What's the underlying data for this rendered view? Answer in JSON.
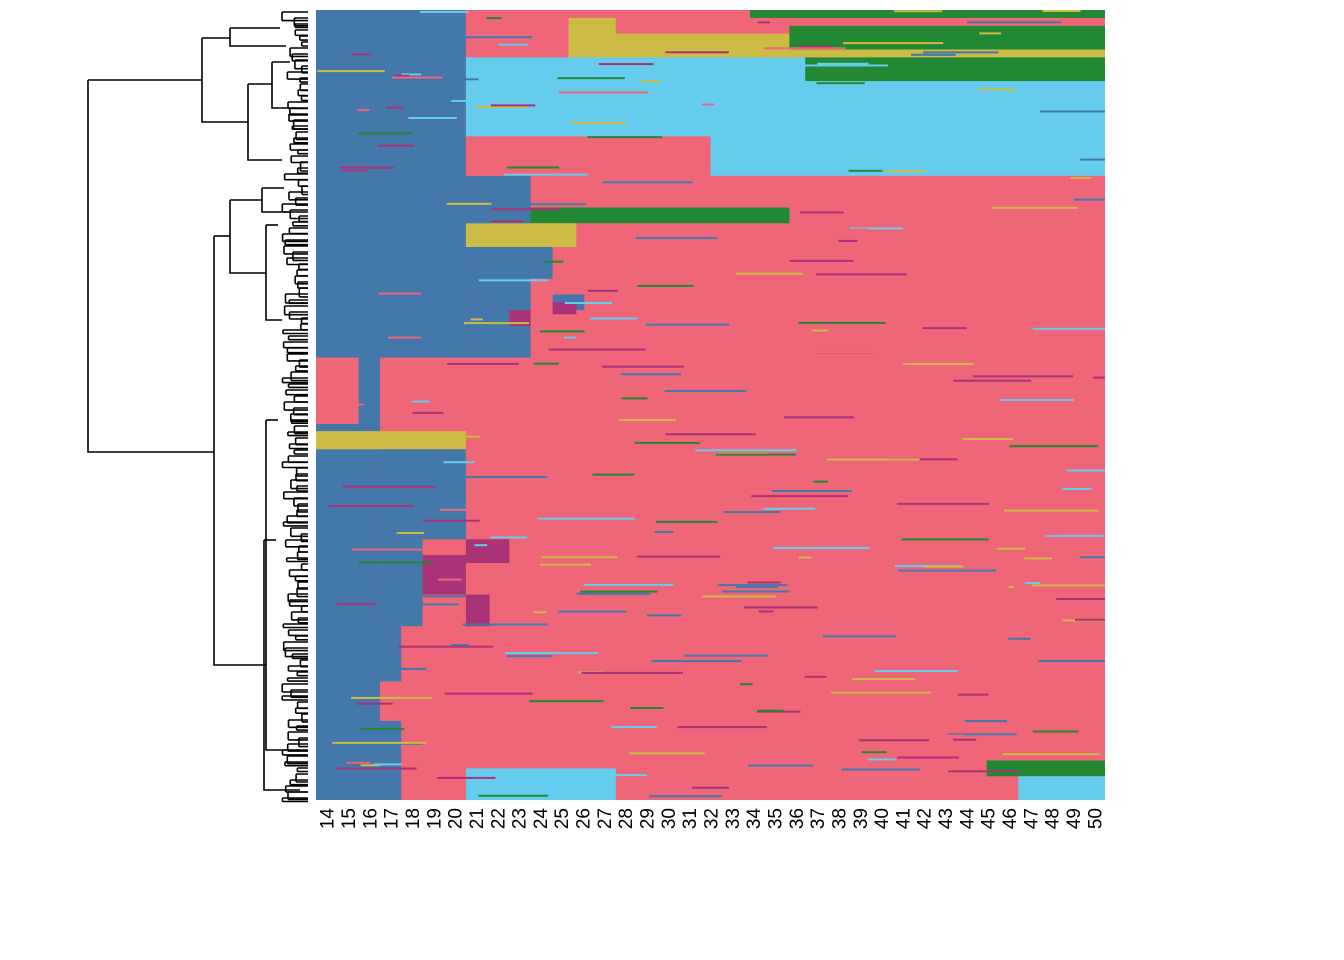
{
  "chart_data": {
    "type": "heatmap",
    "title": "",
    "xlabel": "",
    "ylabel": "",
    "x_tick_labels": [
      "14",
      "15",
      "16",
      "17",
      "18",
      "19",
      "20",
      "21",
      "22",
      "23",
      "24",
      "25",
      "26",
      "27",
      "28",
      "29",
      "30",
      "31",
      "32",
      "33",
      "34",
      "35",
      "36",
      "37",
      "38",
      "39",
      "40",
      "41",
      "42",
      "43",
      "44",
      "45",
      "46",
      "47",
      "48",
      "49",
      "50"
    ],
    "row_dendrogram": true,
    "legend": "none",
    "state_colors": {
      "steelblue": "#4477AA",
      "rose": "#EE6677",
      "skyblue": "#66CCEE",
      "olive": "#CCBB44",
      "green": "#228833",
      "purple": "#AA3377"
    },
    "background_color": "#EE6677",
    "blocks": [
      {
        "rows": [
          0.0,
          0.44
        ],
        "cols": [
          0.0,
          0.19
        ],
        "state": "steelblue"
      },
      {
        "rows": [
          0.44,
          1.0
        ],
        "cols": [
          0.0,
          0.081
        ],
        "state": "steelblue"
      },
      {
        "rows": [
          0.44,
          0.53
        ],
        "cols": [
          0.0,
          0.054
        ],
        "state": "rose"
      },
      {
        "rows": [
          0.524,
          0.56
        ],
        "cols": [
          0.0,
          0.054
        ],
        "state": "steelblue"
      },
      {
        "rows": [
          0.533,
          0.556
        ],
        "cols": [
          0.0,
          0.19
        ],
        "state": "olive"
      },
      {
        "rows": [
          0.556,
          0.67
        ],
        "cols": [
          0.081,
          0.19
        ],
        "state": "steelblue"
      },
      {
        "rows": [
          0.67,
          0.78
        ],
        "cols": [
          0.081,
          0.135
        ],
        "state": "steelblue"
      },
      {
        "rows": [
          0.69,
          0.74
        ],
        "cols": [
          0.135,
          0.19
        ],
        "state": "purple"
      },
      {
        "rows": [
          0.67,
          0.7
        ],
        "cols": [
          0.19,
          0.245
        ],
        "state": "purple"
      },
      {
        "rows": [
          0.74,
          0.78
        ],
        "cols": [
          0.19,
          0.22
        ],
        "state": "purple"
      },
      {
        "rows": [
          0.78,
          0.85
        ],
        "cols": [
          0.0,
          0.108
        ],
        "state": "steelblue"
      },
      {
        "rows": [
          0.85,
          0.94
        ],
        "cols": [
          0.0,
          0.054
        ],
        "state": "steelblue"
      },
      {
        "rows": [
          0.9,
          1.0
        ],
        "cols": [
          0.0,
          0.108
        ],
        "state": "steelblue"
      },
      {
        "rows": [
          0.21,
          0.44
        ],
        "cols": [
          0.19,
          0.272
        ],
        "state": "steelblue"
      },
      {
        "rows": [
          0.28,
          0.34
        ],
        "cols": [
          0.272,
          0.3
        ],
        "state": "steelblue"
      },
      {
        "rows": [
          0.36,
          0.38
        ],
        "cols": [
          0.3,
          0.34
        ],
        "state": "steelblue"
      },
      {
        "rows": [
          0.37,
          0.385
        ],
        "cols": [
          0.3,
          0.33
        ],
        "state": "purple"
      },
      {
        "rows": [
          0.38,
          0.4
        ],
        "cols": [
          0.245,
          0.272
        ],
        "state": "purple"
      },
      {
        "rows": [
          0.0,
          0.06
        ],
        "cols": [
          0.19,
          0.38
        ],
        "state": "rose"
      },
      {
        "rows": [
          0.06,
          0.16
        ],
        "cols": [
          0.19,
          0.32
        ],
        "state": "skyblue"
      },
      {
        "rows": [
          0.03,
          0.21
        ],
        "cols": [
          0.32,
          1.0
        ],
        "state": "skyblue"
      },
      {
        "rows": [
          0.01,
          0.06
        ],
        "cols": [
          0.32,
          1.0
        ],
        "state": "olive"
      },
      {
        "rows": [
          0.0,
          0.03
        ],
        "cols": [
          0.38,
          1.0
        ],
        "state": "rose"
      },
      {
        "rows": [
          0.0,
          0.01
        ],
        "cols": [
          0.55,
          1.0
        ],
        "state": "green"
      },
      {
        "rows": [
          0.02,
          0.05
        ],
        "cols": [
          0.6,
          1.0
        ],
        "state": "green"
      },
      {
        "rows": [
          0.06,
          0.09
        ],
        "cols": [
          0.62,
          1.0
        ],
        "state": "green"
      },
      {
        "rows": [
          0.16,
          0.21
        ],
        "cols": [
          0.19,
          0.5
        ],
        "state": "rose"
      },
      {
        "rows": [
          0.21,
          0.25
        ],
        "cols": [
          0.4,
          1.0
        ],
        "state": "rose"
      },
      {
        "rows": [
          0.25,
          0.27
        ],
        "cols": [
          0.272,
          0.6
        ],
        "state": "green"
      },
      {
        "rows": [
          0.27,
          0.3
        ],
        "cols": [
          0.19,
          0.33
        ],
        "state": "olive"
      },
      {
        "rows": [
          0.95,
          0.97
        ],
        "cols": [
          0.85,
          1.0
        ],
        "state": "green"
      },
      {
        "rows": [
          0.97,
          1.0
        ],
        "cols": [
          0.89,
          1.0
        ],
        "state": "skyblue"
      },
      {
        "rows": [
          0.96,
          1.0
        ],
        "cols": [
          0.19,
          0.38
        ],
        "state": "skyblue"
      }
    ]
  }
}
